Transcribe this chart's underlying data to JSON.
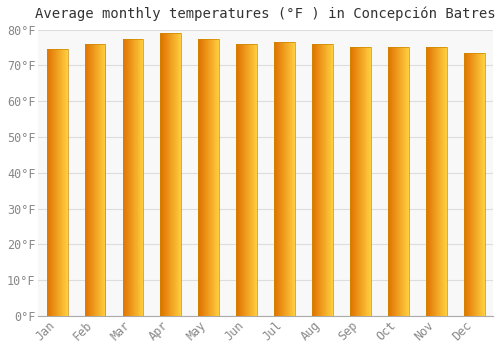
{
  "title": "Average monthly temperatures (°F ) in Concepción Batres",
  "months": [
    "Jan",
    "Feb",
    "Mar",
    "Apr",
    "May",
    "Jun",
    "Jul",
    "Aug",
    "Sep",
    "Oct",
    "Nov",
    "Dec"
  ],
  "values": [
    74.5,
    76.0,
    77.5,
    79.0,
    77.5,
    76.0,
    76.5,
    76.0,
    75.0,
    75.0,
    75.0,
    73.5
  ],
  "bar_color_left": "#E07000",
  "bar_color_right": "#FFD040",
  "background_color": "#FFFFFF",
  "plot_bg_color": "#F8F8F8",
  "grid_color": "#DDDDDD",
  "ylim": [
    0,
    80
  ],
  "yticks": [
    0,
    10,
    20,
    30,
    40,
    50,
    60,
    70,
    80
  ],
  "title_fontsize": 10,
  "tick_fontsize": 8.5,
  "bar_width": 0.55
}
